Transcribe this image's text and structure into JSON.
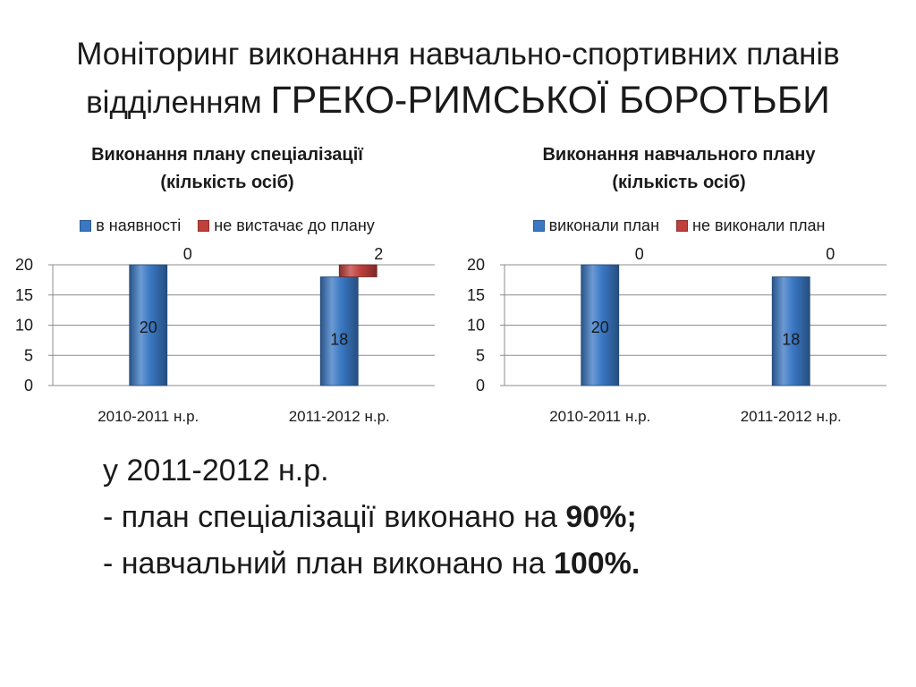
{
  "slide": {
    "title_line1": "Моніторинг виконання навчально-спортивних планів",
    "title_line2_prefix": "відділенням ",
    "title_line2_emphasis": "ГРЕКО-РИМСЬКОЇ БОРОТЬБИ"
  },
  "chart_data": [
    {
      "type": "bar",
      "stacked": true,
      "title": [
        "Виконання плану спеціалізації",
        "(кількість осіб)"
      ],
      "categories": [
        "2010-2011 н.р.",
        "2011-2012 н.р."
      ],
      "series": [
        {
          "name": "в наявності",
          "values": [
            20,
            18
          ],
          "color": "#3a78c4",
          "labels": [
            "20",
            "18"
          ]
        },
        {
          "name": "не вистачає до плану",
          "values": [
            0,
            2
          ],
          "color": "#c0403c",
          "labels": [
            "0",
            "2"
          ]
        }
      ],
      "yticks": [
        "0",
        "5",
        "10",
        "15",
        "20"
      ],
      "ylim": [
        0,
        20
      ],
      "grid": true,
      "legend": "top"
    },
    {
      "type": "bar",
      "stacked": true,
      "title": [
        "Виконання навчального плану",
        "(кількість осіб)"
      ],
      "categories": [
        "2010-2011 н.р.",
        "2011-2012 н.р."
      ],
      "series": [
        {
          "name": "виконали план",
          "values": [
            20,
            18
          ],
          "color": "#3a78c4",
          "labels": [
            "20",
            "18"
          ]
        },
        {
          "name": "не виконали план",
          "values": [
            0,
            0
          ],
          "color": "#c0403c",
          "labels": [
            "0",
            "0"
          ]
        }
      ],
      "yticks": [
        "0",
        "5",
        "10",
        "15",
        "20"
      ],
      "ylim": [
        0,
        20
      ],
      "grid": true,
      "legend": "top"
    }
  ],
  "summary": {
    "line1": "у 2011-2012 н.р.",
    "line2_text": "- план спеціалізації виконано на ",
    "line2_value": "90%;",
    "line3_text": "- навчальний план виконано  на ",
    "line3_value": "100%."
  }
}
